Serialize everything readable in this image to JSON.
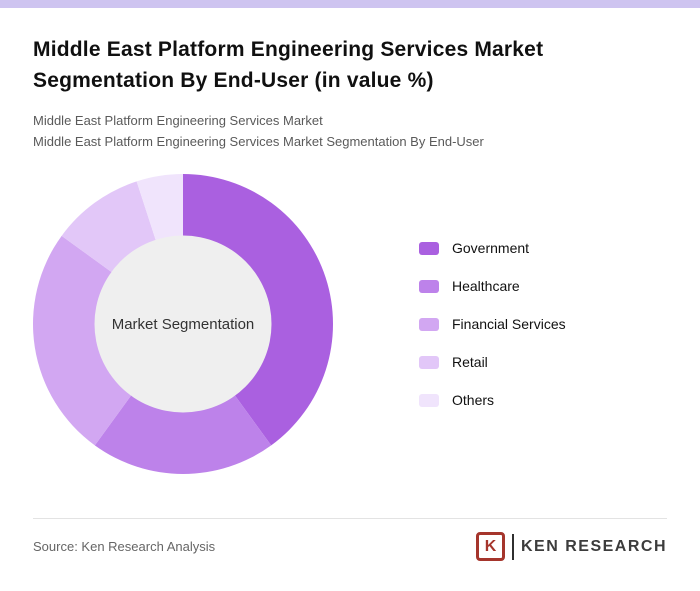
{
  "page": {
    "title": "Middle East Platform Engineering Services Market Segmentation By End-User (in value %)",
    "subtitle1": "Middle East Platform Engineering Services Market",
    "subtitle2": "Middle East Platform Engineering Services Market Segmentation By End-User",
    "accent_bar_color": "#cec4f0"
  },
  "chart_data": {
    "type": "pie",
    "donut": true,
    "title": "Middle East Platform Engineering Services Market Segmentation By End-User (in value %)",
    "center_label": "Market Segmentation",
    "unit": "%",
    "legend_position": "right",
    "inner_radius_ratio": 0.59,
    "center_fill": "#efefef",
    "series": [
      {
        "name": "Government",
        "value": 40,
        "color": "#aa60e0"
      },
      {
        "name": "Healthcare",
        "value": 20,
        "color": "#bd82ea"
      },
      {
        "name": "Financial Services",
        "value": 25,
        "color": "#d2a7f2"
      },
      {
        "name": "Retail",
        "value": 10,
        "color": "#e2c7f8"
      },
      {
        "name": "Others",
        "value": 5,
        "color": "#f0e4fc"
      }
    ]
  },
  "footer": {
    "source": "Source: Ken Research Analysis",
    "logo": {
      "letter": "K",
      "text": "KEN RESEARCH",
      "box_color": "#a5352c",
      "text_color": "#3c3c3c"
    }
  }
}
